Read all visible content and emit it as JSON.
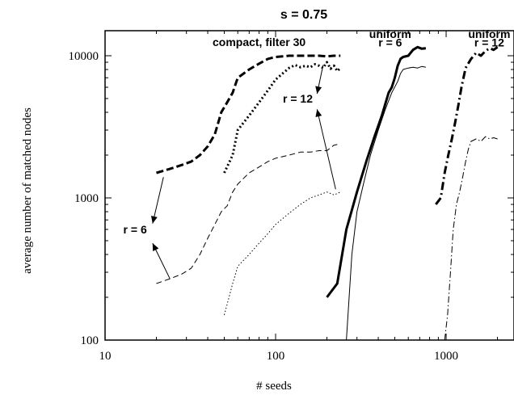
{
  "chart_data": {
    "type": "line",
    "title": "s = 0.75",
    "xlabel": "# seeds",
    "ylabel": "average number of matched nodes",
    "xscale": "log",
    "yscale": "log",
    "xlim": [
      10,
      2500
    ],
    "ylim": [
      100,
      15000
    ],
    "x_ticks": [
      {
        "value": 10,
        "label": "10"
      },
      {
        "value": 100,
        "label": "100"
      },
      {
        "value": 1000,
        "label": "1000"
      }
    ],
    "y_ticks": [
      {
        "value": 100,
        "label": "100"
      },
      {
        "value": 1000,
        "label": "1000"
      },
      {
        "value": 10000,
        "label": "10000"
      }
    ],
    "grid": false,
    "legend": "none",
    "series": [
      {
        "style": "dashed-thick",
        "x": [
          20,
          24,
          28,
          32,
          36,
          40,
          44,
          48,
          52,
          56,
          60,
          70,
          80,
          90,
          100,
          110,
          120,
          140,
          160,
          180,
          200,
          220,
          240
        ],
        "y": [
          1500,
          1600,
          1700,
          1800,
          2000,
          2300,
          2800,
          4000,
          4700,
          5500,
          7000,
          8000,
          8800,
          9500,
          9800,
          9900,
          10000,
          10000,
          10000,
          10000,
          9900,
          10000,
          10000
        ]
      },
      {
        "style": "dashed-thin",
        "x": [
          20,
          24,
          28,
          32,
          36,
          40,
          44,
          48,
          52,
          56,
          60,
          70,
          80,
          90,
          100,
          120,
          140,
          160,
          180,
          200,
          220,
          240
        ],
        "y": [
          250,
          270,
          290,
          320,
          400,
          520,
          650,
          800,
          880,
          1100,
          1250,
          1500,
          1650,
          1800,
          1900,
          2000,
          2100,
          2100,
          2150,
          2150,
          2350,
          2400
        ]
      },
      {
        "style": "dotted-thick",
        "x": [
          50,
          56,
          60,
          70,
          80,
          90,
          100,
          110,
          120,
          130,
          140,
          150,
          160,
          170,
          180,
          190,
          200,
          210,
          220,
          230,
          240
        ],
        "y": [
          1500,
          2000,
          3000,
          3800,
          4700,
          5700,
          6800,
          7500,
          8200,
          8600,
          8300,
          8500,
          8300,
          8700,
          8500,
          8200,
          9000,
          8100,
          8500,
          7800,
          8200
        ]
      },
      {
        "style": "dotted-thin",
        "x": [
          50,
          56,
          60,
          70,
          80,
          90,
          100,
          120,
          140,
          160,
          180,
          200,
          220,
          240
        ],
        "y": [
          150,
          250,
          330,
          400,
          480,
          560,
          650,
          780,
          900,
          1000,
          1050,
          1100,
          1050,
          1100
        ]
      },
      {
        "style": "solid-thick",
        "x": [
          200,
          230,
          260,
          300,
          340,
          380,
          420,
          460,
          480,
          500,
          520,
          540,
          560,
          600,
          640,
          680,
          720,
          760
        ],
        "y": [
          200,
          250,
          600,
          1100,
          1800,
          2700,
          3800,
          5500,
          6000,
          7000,
          8500,
          9500,
          9800,
          10000,
          11000,
          11500,
          11200,
          11300
        ]
      },
      {
        "style": "solid-thin",
        "x": [
          260,
          270,
          280,
          300,
          330,
          360,
          400,
          440,
          480,
          520,
          540,
          560,
          600,
          640,
          680,
          720,
          760
        ],
        "y": [
          100,
          200,
          400,
          800,
          1300,
          2000,
          3000,
          4200,
          5500,
          6600,
          7500,
          8000,
          8200,
          8300,
          8200,
          8400,
          8300
        ]
      },
      {
        "style": "dashdot-thick",
        "x": [
          870,
          930,
          980,
          1030,
          1080,
          1130,
          1180,
          1230,
          1300,
          1400,
          1500,
          1600,
          1700,
          1800,
          1900,
          2000
        ],
        "y": [
          900,
          1000,
          1500,
          2000,
          2600,
          3400,
          4500,
          6000,
          8200,
          9500,
          10500,
          10000,
          10800,
          11300,
          11000,
          11500
        ]
      },
      {
        "style": "dashdot-thin",
        "x": [
          980,
          1020,
          1060,
          1100,
          1150,
          1200,
          1250,
          1300,
          1350,
          1400,
          1500,
          1600,
          1700,
          1800,
          1900,
          2000
        ],
        "y": [
          100,
          150,
          300,
          600,
          900,
          1100,
          1400,
          1800,
          2200,
          2500,
          2600,
          2500,
          2700,
          2600,
          2650,
          2600
        ]
      }
    ],
    "annotations": [
      {
        "text": "compact, filter 30",
        "x": 80,
        "y": 12500
      },
      {
        "text": "uniform",
        "x": 470,
        "y": 14200
      },
      {
        "text": "r = 6",
        "x": 470,
        "y": 12400
      },
      {
        "text": "uniform",
        "x": 1790,
        "y": 14200
      },
      {
        "text": "r = 12",
        "x": 1790,
        "y": 12400
      },
      {
        "text": "r = 12",
        "x": 135,
        "y": 5000
      },
      {
        "text": "r = 6",
        "x": 15,
        "y": 600
      }
    ],
    "arrows": [
      {
        "from": [
          22,
          1400
        ],
        "to": [
          19,
          660
        ]
      },
      {
        "from": [
          24,
          270
        ],
        "to": [
          19,
          480
        ]
      },
      {
        "from": [
          190,
          8600
        ],
        "to": [
          175,
          5400
        ]
      },
      {
        "from": [
          225,
          1150
        ],
        "to": [
          175,
          4200
        ]
      }
    ]
  }
}
